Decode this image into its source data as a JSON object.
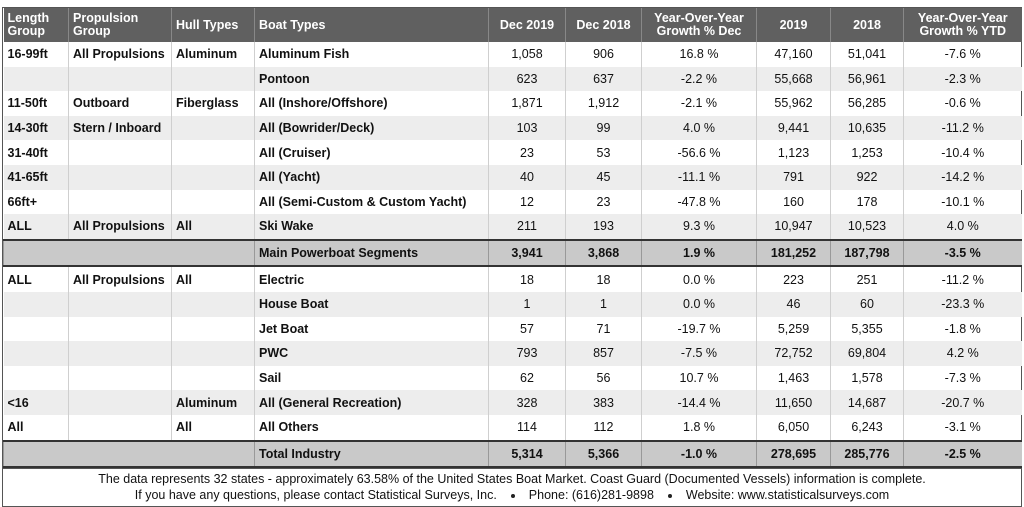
{
  "headers": [
    "Length Group",
    "Propulsion Group",
    "Hull Types",
    "Boat Types",
    "Dec 2019",
    "Dec 2018",
    "Year-Over-Year Growth % Dec",
    "2019",
    "2018",
    "Year-Over-Year Growth % YTD"
  ],
  "rows": [
    [
      "16-99ft",
      "All Propulsions",
      "Aluminum",
      "Aluminum Fish",
      "1,058",
      "906",
      "16.8 %",
      "47,160",
      "51,041",
      "-7.6 %"
    ],
    [
      "",
      "",
      "",
      "Pontoon",
      "623",
      "637",
      "-2.2 %",
      "55,668",
      "56,961",
      "-2.3 %"
    ],
    [
      "11-50ft",
      "Outboard",
      "Fiberglass",
      "All (Inshore/Offshore)",
      "1,871",
      "1,912",
      "-2.1 %",
      "55,962",
      "56,285",
      "-0.6 %"
    ],
    [
      "14-30ft",
      "Stern / Inboard",
      "",
      "All (Bowrider/Deck)",
      "103",
      "99",
      "4.0 %",
      "9,441",
      "10,635",
      "-11.2 %"
    ],
    [
      "31-40ft",
      "",
      "",
      "All (Cruiser)",
      "23",
      "53",
      "-56.6 %",
      "1,123",
      "1,253",
      "-10.4 %"
    ],
    [
      "41-65ft",
      "",
      "",
      "All (Yacht)",
      "40",
      "45",
      "-11.1 %",
      "791",
      "922",
      "-14.2 %"
    ],
    [
      "66ft+",
      "",
      "",
      "All (Semi-Custom & Custom Yacht)",
      "12",
      "23",
      "-47.8 %",
      "160",
      "178",
      "-10.1 %"
    ],
    [
      "ALL",
      "All Propulsions",
      "All",
      "Ski Wake",
      "211",
      "193",
      "9.3 %",
      "10,947",
      "10,523",
      "4.0 %"
    ]
  ],
  "subtotal": [
    "Main Powerboat Segments",
    "3,941",
    "3,868",
    "1.9 %",
    "181,252",
    "187,798",
    "-3.5 %"
  ],
  "rows2": [
    [
      "ALL",
      "All Propulsions",
      "All",
      "Electric",
      "18",
      "18",
      "0.0 %",
      "223",
      "251",
      "-11.2 %"
    ],
    [
      "",
      "",
      "",
      "House Boat",
      "1",
      "1",
      "0.0 %",
      "46",
      "60",
      "-23.3 %"
    ],
    [
      "",
      "",
      "",
      "Jet Boat",
      "57",
      "71",
      "-19.7 %",
      "5,259",
      "5,355",
      "-1.8 %"
    ],
    [
      "",
      "",
      "",
      "PWC",
      "793",
      "857",
      "-7.5 %",
      "72,752",
      "69,804",
      "4.2 %"
    ],
    [
      "",
      "",
      "",
      "Sail",
      "62",
      "56",
      "10.7 %",
      "1,463",
      "1,578",
      "-7.3 %"
    ],
    [
      "<16",
      "",
      "Aluminum",
      "All (General Recreation)",
      "328",
      "383",
      "-14.4 %",
      "11,650",
      "14,687",
      "-20.7 %"
    ],
    [
      "All",
      "",
      "All",
      "All Others",
      "114",
      "112",
      "1.8 %",
      "6,050",
      "6,243",
      "-3.1 %"
    ]
  ],
  "total": [
    "Total Industry",
    "5,314",
    "5,366",
    "-1.0 %",
    "278,695",
    "285,776",
    "-2.5 %"
  ],
  "footer": {
    "line1": "The data represents 32 states - approximately 63.58% of the United States Boat Market.  Coast Guard (Documented Vessels) information is complete.",
    "contact": "If you have any questions, please contact Statistical Surveys, Inc.",
    "phone": "Phone: (616)281-9898",
    "website": "Website: www.statisticalsurveys.com"
  }
}
